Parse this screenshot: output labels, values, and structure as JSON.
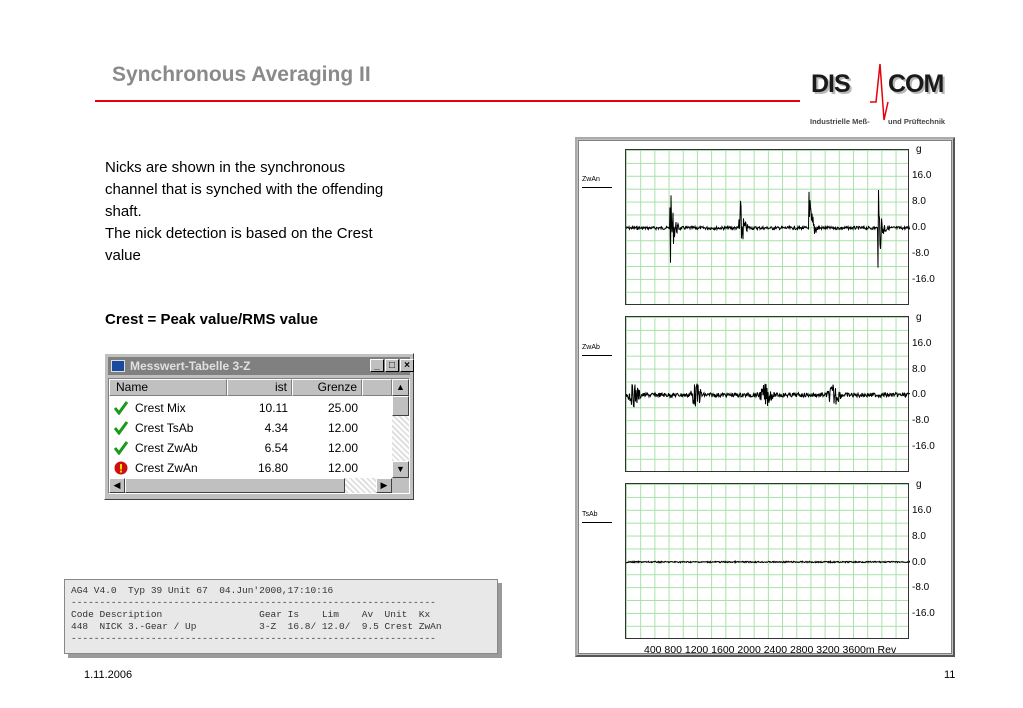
{
  "slide": {
    "title": "Synchronous Averaging II",
    "intro_lines": [
      "Nicks are shown in the synchronous",
      "channel that is synched with the offending",
      "shaft.",
      "The nick detection is based on the Crest",
      "value"
    ],
    "formula": "Crest = Peak value/RMS value",
    "date": "1.11.2006",
    "page": "11"
  },
  "logo": {
    "left": "DIS",
    "right": "COM",
    "tagline_left": "Industrielle Meß-",
    "tagline_right": "und Prüftechnik"
  },
  "table_window": {
    "title": "Messwert-Tabelle 3-Z",
    "columns": [
      "Name",
      "ist",
      "Grenze"
    ],
    "rows": [
      {
        "name": "Crest Mix",
        "ist": "10.11",
        "grenze": "25.00",
        "status": "ok"
      },
      {
        "name": "Crest TsAb",
        "ist": "4.34",
        "grenze": "12.00",
        "status": "ok"
      },
      {
        "name": "Crest ZwAb",
        "ist": "6.54",
        "grenze": "12.00",
        "status": "ok"
      },
      {
        "name": "Crest ZwAn",
        "ist": "16.80",
        "grenze": "12.00",
        "status": "alarm"
      }
    ],
    "buttons": {
      "minimize": "_",
      "maximize": "□",
      "close": "×"
    }
  },
  "report": {
    "lines": [
      "AG4 V4.0  Typ 39 Unit 67  04.Jun'2000,17:10:16",
      "----------------------------------------------------------------",
      "Code Description                 Gear Is    Lim    Av  Unit  Kx",
      "448  NICK 3.-Gear / Up           3-Z  16.8/ 12.0/  9.5 Crest ZwAn",
      "----------------------------------------------------------------"
    ]
  },
  "scope": {
    "unit": "g",
    "y_ticks": [
      "16.0",
      "8.0",
      "0.0",
      "-8.0",
      "-16.0"
    ],
    "x_axis": "400   800  1200 1600 2000 2400 2800 3200 3600m Rev",
    "channels": [
      {
        "name": "ZwAn",
        "pattern": "spikes"
      },
      {
        "name": "ZwAb",
        "pattern": "bursts"
      },
      {
        "name": "TsAb",
        "pattern": "flat"
      }
    ],
    "trace_color": "#000000",
    "grid_color": "#a8e0a8"
  }
}
